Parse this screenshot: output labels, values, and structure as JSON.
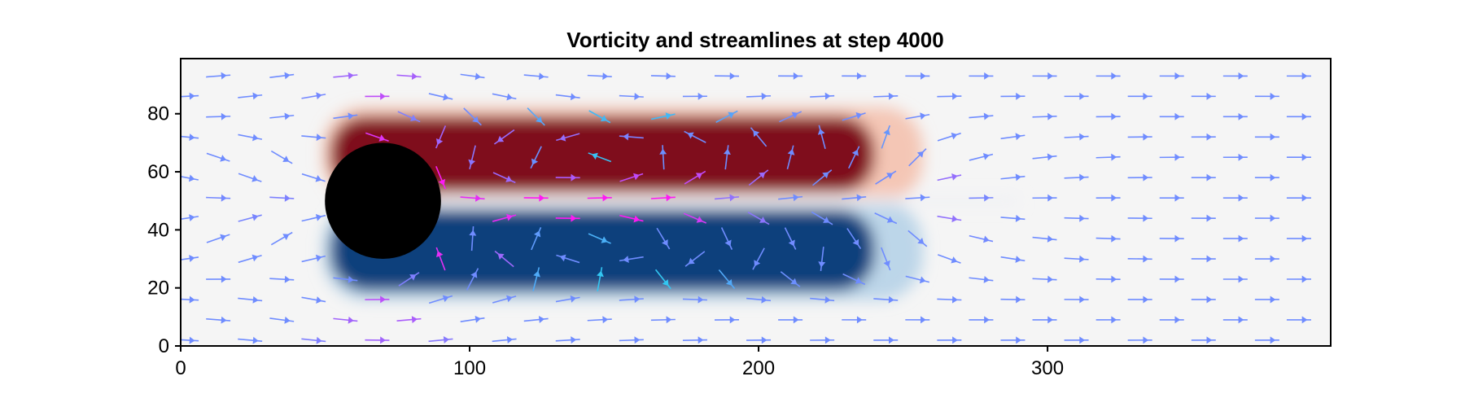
{
  "chart_data": {
    "type": "heatmap",
    "title": "Vorticity and streamlines at step 4000",
    "xlabel": "",
    "ylabel": "",
    "xlim": [
      0,
      398
    ],
    "ylim": [
      0,
      99
    ],
    "x_ticks": [
      0,
      100,
      200,
      300
    ],
    "y_ticks": [
      0,
      20,
      40,
      60,
      80
    ],
    "grid": false,
    "colormap": "diverging red-white-blue (positive vorticity dark red, negative dark blue)",
    "colorscale": [
      "#053061",
      "#2166ac",
      "#f7f7f7",
      "#d6604d",
      "#67001f"
    ],
    "obstacle": {
      "shape": "circle",
      "center": [
        70,
        50
      ],
      "radius": 20,
      "color": "#000000"
    },
    "vortex_regions": [
      {
        "sign": "positive",
        "color": "#7f0a1f",
        "x_range": [
          52,
          240
        ],
        "y_range": [
          52,
          80
        ]
      },
      {
        "sign": "negative",
        "color": "#083f7c",
        "x_range": [
          52,
          240
        ],
        "y_range": [
          18,
          48
        ]
      }
    ],
    "streamline_arrows": {
      "color_low_speed": "#22d6ee",
      "color_mid_speed": "#6f8cff",
      "color_high_speed": "#ff19f4",
      "spacing": [
        22,
        7
      ],
      "description_of_field": "uniform flow left to right, accelerated around cylinder, recirculation bubbles behind it"
    }
  }
}
